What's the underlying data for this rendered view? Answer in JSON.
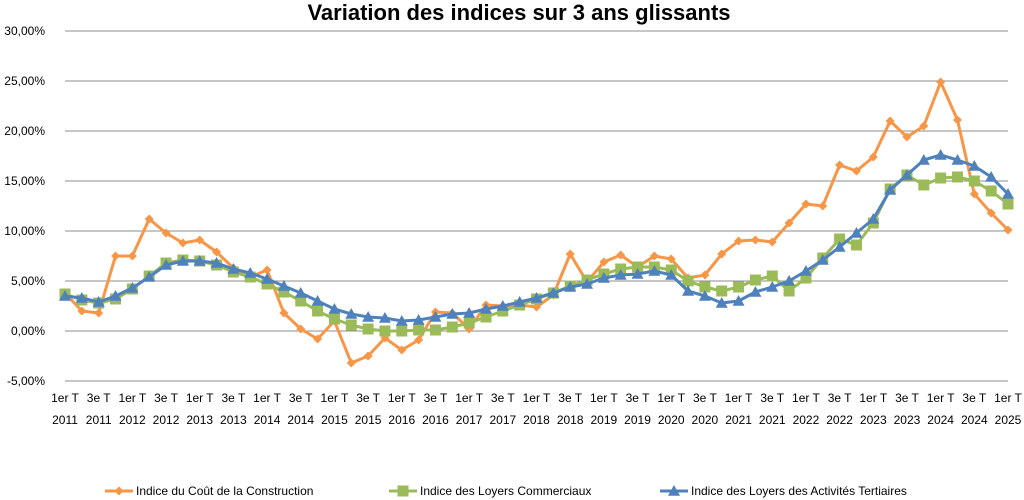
{
  "chart_data": {
    "type": "line",
    "title": "Variation des indices sur 3 ans glissants",
    "xlabel": "",
    "ylabel": "",
    "y_tick_labels": [
      "-5,00%",
      "0,00%",
      "5,00%",
      "10,00%",
      "15,00%",
      "20,00%",
      "25,00%",
      "30,00%"
    ],
    "ylim": [
      -5,
      30
    ],
    "grid": true,
    "legend_position": "bottom",
    "x_tick_labels": [
      [
        "1er T",
        "2011"
      ],
      [
        "3e T",
        "2011"
      ],
      [
        "1er T",
        "2012"
      ],
      [
        "3e T",
        "2012"
      ],
      [
        "1er T",
        "2013"
      ],
      [
        "3e T",
        "2013"
      ],
      [
        "1er T",
        "2014"
      ],
      [
        "3e T",
        "2014"
      ],
      [
        "1er T",
        "2015"
      ],
      [
        "3e T",
        "2015"
      ],
      [
        "1er T",
        "2016"
      ],
      [
        "3e T",
        "2016"
      ],
      [
        "1er T",
        "2017"
      ],
      [
        "3e T",
        "2017"
      ],
      [
        "1er T",
        "2018"
      ],
      [
        "3e T",
        "2018"
      ],
      [
        "1er T",
        "2019"
      ],
      [
        "3e T",
        "2019"
      ],
      [
        "1er T",
        "2020"
      ],
      [
        "3e T",
        "2020"
      ],
      [
        "1er T",
        "2021"
      ],
      [
        "3e T",
        "2021"
      ],
      [
        "1er T",
        "2022"
      ],
      [
        "3e T",
        "2022"
      ],
      [
        "1er T",
        "2023"
      ],
      [
        "3e T",
        "2023"
      ],
      [
        "1er T",
        "2024"
      ],
      [
        "3e T",
        "2024"
      ],
      [
        "1er T",
        "2025"
      ]
    ],
    "categories": [
      "T1 2011",
      "T2 2011",
      "T3 2011",
      "T4 2011",
      "T1 2012",
      "T2 2012",
      "T3 2012",
      "T4 2012",
      "T1 2013",
      "T2 2013",
      "T3 2013",
      "T4 2013",
      "T1 2014",
      "T2 2014",
      "T3 2014",
      "T4 2014",
      "T1 2015",
      "T2 2015",
      "T3 2015",
      "T4 2015",
      "T1 2016",
      "T2 2016",
      "T3 2016",
      "T4 2016",
      "T1 2017",
      "T2 2017",
      "T3 2017",
      "T4 2017",
      "T1 2018",
      "T2 2018",
      "T3 2018",
      "T4 2018",
      "T1 2019",
      "T2 2019",
      "T3 2019",
      "T4 2019",
      "T1 2020",
      "T2 2020",
      "T3 2020",
      "T4 2020",
      "T1 2021",
      "T2 2021",
      "T3 2021",
      "T4 2021",
      "T1 2022",
      "T2 2022",
      "T3 2022",
      "T4 2022",
      "T1 2023",
      "T2 2023",
      "T3 2023",
      "T4 2023",
      "T1 2024",
      "T2 2024",
      "T3 2024",
      "T4 2024",
      "T1 2025"
    ],
    "series": [
      {
        "name": "Indice du Coût de la Construction",
        "color": "#F79646",
        "marker": "diamond",
        "values": [
          3.8,
          2.0,
          1.8,
          7.5,
          7.5,
          11.2,
          9.8,
          8.8,
          9.1,
          7.9,
          6.3,
          5.4,
          6.1,
          1.8,
          0.2,
          -0.8,
          1.0,
          -3.2,
          -2.5,
          -0.7,
          -1.9,
          -0.9,
          1.9,
          1.8,
          0.2,
          2.6,
          2.5,
          2.6,
          2.4,
          3.6,
          7.7,
          4.9,
          6.9,
          7.6,
          6.4,
          7.5,
          7.2,
          5.3,
          5.6,
          7.7,
          9.0,
          9.1,
          8.9,
          10.8,
          12.7,
          12.5,
          16.6,
          16.0,
          17.4,
          21.0,
          19.4,
          20.5,
          24.9,
          21.1,
          13.7,
          11.8,
          10.1
        ]
      },
      {
        "name": "Indice des Loyers Commerciaux",
        "color": "#9BBB59",
        "marker": "square",
        "values": [
          3.7,
          3.1,
          2.8,
          3.2,
          4.2,
          5.5,
          6.8,
          7.1,
          7.0,
          6.6,
          5.9,
          5.4,
          4.7,
          3.9,
          3.0,
          2.0,
          1.2,
          0.6,
          0.2,
          0.0,
          0.0,
          0.1,
          0.1,
          0.4,
          0.8,
          1.4,
          2.0,
          2.6,
          3.2,
          3.8,
          4.5,
          5.1,
          5.7,
          6.2,
          6.4,
          6.4,
          6.1,
          5.0,
          4.4,
          4.0,
          4.4,
          5.1,
          5.5,
          4.0,
          5.3,
          7.3,
          9.2,
          8.6,
          10.8,
          14.2,
          15.6,
          14.6,
          15.3,
          15.4,
          15.0,
          14.0,
          12.7
        ]
      },
      {
        "name": "Indice des Loyers des Activités Tertiaires",
        "color": "#4F81BD",
        "marker": "triangle",
        "values": [
          3.5,
          3.3,
          2.9,
          3.5,
          4.3,
          5.4,
          6.6,
          7.0,
          7.0,
          6.8,
          6.2,
          5.8,
          5.2,
          4.5,
          3.8,
          3.0,
          2.2,
          1.7,
          1.4,
          1.3,
          1.0,
          1.1,
          1.4,
          1.7,
          1.8,
          2.2,
          2.5,
          2.9,
          3.3,
          3.8,
          4.4,
          4.7,
          5.3,
          5.6,
          5.7,
          6.0,
          5.6,
          4.0,
          3.5,
          2.8,
          3.0,
          3.9,
          4.4,
          5.0,
          6.0,
          7.1,
          8.4,
          9.8,
          11.2,
          14.1,
          15.6,
          17.1,
          17.6,
          17.1,
          16.5,
          15.4,
          13.7
        ]
      }
    ]
  }
}
